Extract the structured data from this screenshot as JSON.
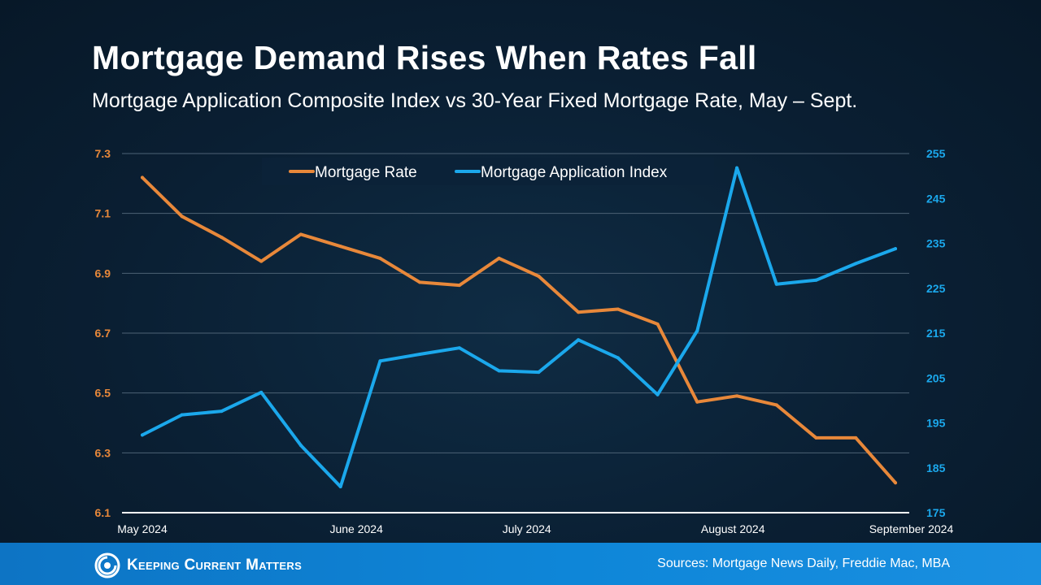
{
  "title": "Mortgage Demand Rises When Rates Fall",
  "subtitle": "Mortgage Application Composite Index vs 30-Year Fixed Mortgage Rate, May – Sept.",
  "footer": {
    "brand": "Keeping Current Matters",
    "sources": "Sources: Mortgage News Daily, Freddie Mac, MBA"
  },
  "colors": {
    "rate": "#e8883a",
    "index": "#1ba8ec",
    "footer": "#0e86d8"
  },
  "chart_data": {
    "type": "line",
    "legend_position": "top-center",
    "grid": true,
    "x_tick_labels": [
      "May 2024",
      "June 2024",
      "July 2024",
      "August 2024",
      "September 2024"
    ],
    "x_tick_positions": [
      0,
      5.4,
      9.7,
      14.9,
      19.4
    ],
    "y_left": {
      "ticks": [
        "7.3",
        "7.1",
        "6.9",
        "6.7",
        "6.5",
        "6.3",
        "6.1"
      ],
      "range": [
        6.1,
        7.3
      ]
    },
    "y_right": {
      "ticks": [
        "255",
        "245",
        "235",
        "225",
        "215",
        "205",
        "195",
        "185",
        "175"
      ],
      "range": [
        175,
        255
      ]
    },
    "series": [
      {
        "name": "Mortgage Rate",
        "axis": "left",
        "values": [
          7.22,
          7.09,
          7.02,
          6.94,
          7.03,
          6.99,
          6.95,
          6.87,
          6.86,
          6.95,
          6.89,
          6.77,
          6.78,
          6.73,
          6.47,
          6.49,
          6.46,
          6.35,
          6.35,
          6.2
        ]
      },
      {
        "name": "Mortgage Application Index",
        "axis": "right",
        "values": [
          192.3,
          196.8,
          197.6,
          201.8,
          190.0,
          180.8,
          208.8,
          210.3,
          211.7,
          206.6,
          206.3,
          213.5,
          209.5,
          201.3,
          215.5,
          251.8,
          225.9,
          226.8,
          230.5,
          233.8
        ]
      }
    ]
  }
}
